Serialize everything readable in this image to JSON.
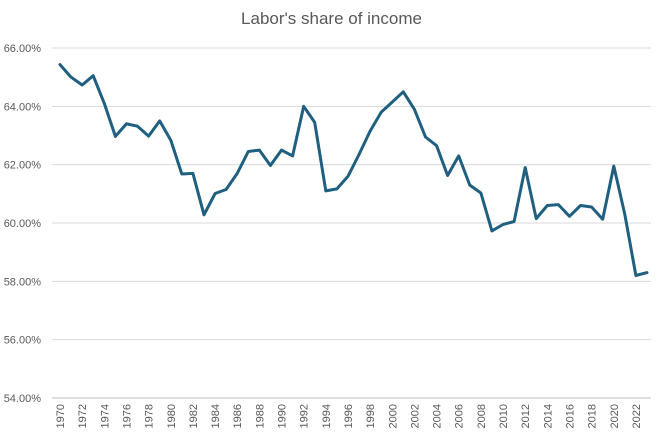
{
  "chart_data": {
    "type": "line",
    "title": "Labor's share of income",
    "xlabel": "",
    "ylabel": "",
    "ylim": [
      0.54,
      0.66
    ],
    "y_ticks": [
      "54.00%",
      "56.00%",
      "58.00%",
      "60.00%",
      "62.00%",
      "64.00%",
      "66.00%"
    ],
    "y_tick_values": [
      0.54,
      0.56,
      0.58,
      0.6,
      0.62,
      0.64,
      0.66
    ],
    "x_ticks": [
      "1970",
      "1972",
      "1974",
      "1976",
      "1978",
      "1980",
      "1982",
      "1984",
      "1986",
      "1988",
      "1990",
      "1992",
      "1994",
      "1996",
      "1998",
      "2000",
      "2002",
      "2004",
      "2006",
      "2008",
      "2010",
      "2012",
      "2014",
      "2016",
      "2018",
      "2020",
      "2022"
    ],
    "grid": "horizontal",
    "legend": "none",
    "series": [
      {
        "color": "#1f5f7f",
        "x": [
          1970,
          1971,
          1972,
          1973,
          1974,
          1975,
          1976,
          1977,
          1978,
          1979,
          1980,
          1981,
          1982,
          1983,
          1984,
          1985,
          1986,
          1987,
          1988,
          1989,
          1990,
          1991,
          1992,
          1993,
          1994,
          1995,
          1996,
          1997,
          1998,
          1999,
          2000,
          2001,
          2002,
          2003,
          2004,
          2005,
          2006,
          2007,
          2008,
          2009,
          2010,
          2011,
          2012,
          2013,
          2014,
          2015,
          2016,
          2017,
          2018,
          2019,
          2020,
          2021,
          2022,
          2023
        ],
        "values": [
          0.6543,
          0.65,
          0.6473,
          0.6505,
          0.641,
          0.6297,
          0.634,
          0.6332,
          0.6298,
          0.635,
          0.6284,
          0.6168,
          0.617,
          0.6028,
          0.6101,
          0.6115,
          0.617,
          0.6245,
          0.625,
          0.6197,
          0.625,
          0.623,
          0.64,
          0.6345,
          0.611,
          0.6117,
          0.616,
          0.6235,
          0.6315,
          0.638,
          0.6415,
          0.645,
          0.639,
          0.6295,
          0.6265,
          0.6163,
          0.623,
          0.613,
          0.6103,
          0.5973,
          0.5995,
          0.6005,
          0.619,
          0.6015,
          0.606,
          0.6063,
          0.6023,
          0.606,
          0.6055,
          0.6013,
          0.6195,
          0.603,
          0.582,
          0.583
        ]
      }
    ]
  }
}
